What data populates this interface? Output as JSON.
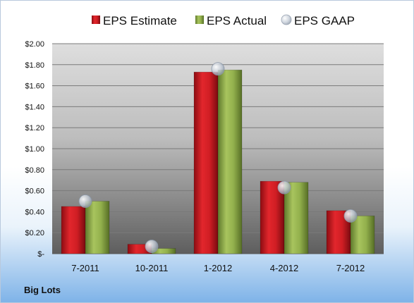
{
  "company": "Big Lots",
  "chart_data": {
    "type": "bar",
    "categories": [
      "7-2011",
      "10-2011",
      "1-2012",
      "4-2012",
      "7-2012"
    ],
    "series": [
      {
        "name": "EPS Estimate",
        "color": "#c0161c",
        "values": [
          0.45,
          0.09,
          1.73,
          0.69,
          0.41
        ]
      },
      {
        "name": "EPS Actual",
        "color": "#8dab48",
        "values": [
          0.5,
          0.05,
          1.75,
          0.68,
          0.36
        ]
      }
    ],
    "gaap": {
      "name": "EPS GAAP",
      "type": "scatter",
      "color": "#b8c4d4",
      "values": [
        0.5,
        0.07,
        1.76,
        0.63,
        0.36
      ]
    },
    "y_ticks": [
      {
        "value": 0.0,
        "label": "$-"
      },
      {
        "value": 0.2,
        "label": "$0.20"
      },
      {
        "value": 0.4,
        "label": "$0.40"
      },
      {
        "value": 0.6,
        "label": "$0.60"
      },
      {
        "value": 0.8,
        "label": "$0.80"
      },
      {
        "value": 1.0,
        "label": "$1.00"
      },
      {
        "value": 1.2,
        "label": "$1.20"
      },
      {
        "value": 1.4,
        "label": "$1.40"
      },
      {
        "value": 1.6,
        "label": "$1.60"
      },
      {
        "value": 1.8,
        "label": "$1.80"
      },
      {
        "value": 2.0,
        "label": "$2.00"
      }
    ],
    "ylim": [
      0,
      2.0
    ],
    "grid": true,
    "legend_position": "top"
  }
}
